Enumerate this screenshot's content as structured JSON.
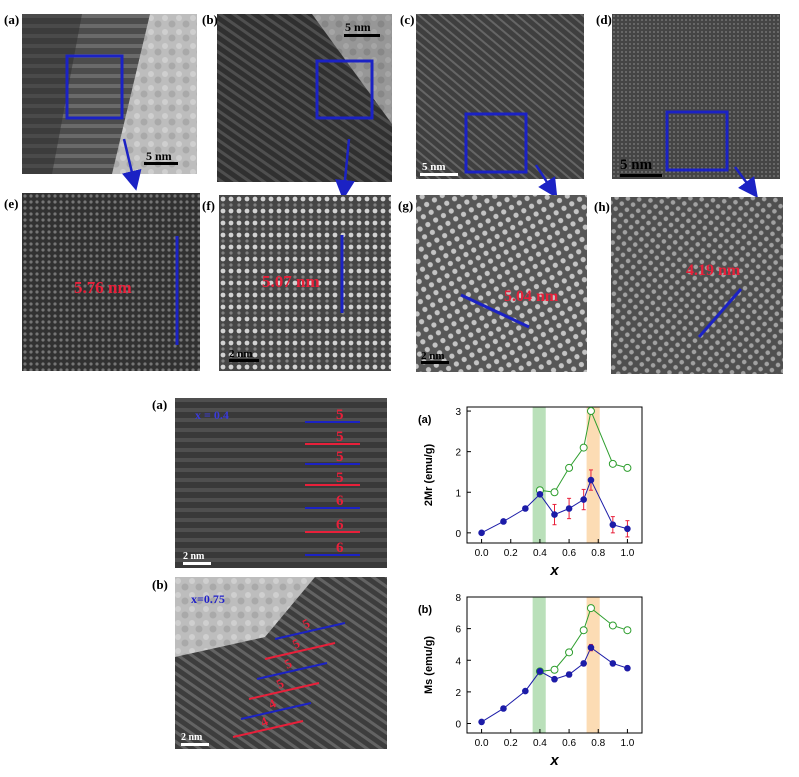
{
  "top_panels": [
    {
      "label": "(a)",
      "scale": "5 nm"
    },
    {
      "label": "(b)",
      "scale": "5 nm"
    },
    {
      "label": "(c)",
      "scale": "5 nm"
    },
    {
      "label": "(d)",
      "scale": "5 nm"
    }
  ],
  "zoom_panels": [
    {
      "label": "(e)",
      "measure": "5.76 nm",
      "scale": ""
    },
    {
      "label": "(f)",
      "measure": "5.07 nm",
      "scale": "2 nm"
    },
    {
      "label": "(g)",
      "measure": "5.04 nm",
      "scale": "2 nm"
    },
    {
      "label": "(h)",
      "measure": "4.19 nm",
      "scale": ""
    }
  ],
  "bottom_images": [
    {
      "label": "(a)",
      "composition": "x = 0.4",
      "scale": "2 nm",
      "layers": [
        "5",
        "5",
        "5",
        "5",
        "6",
        "6",
        "6"
      ]
    },
    {
      "label": "(b)",
      "composition": "x=0.75",
      "scale": "2 nm",
      "layers": [
        "5",
        "5",
        "5",
        "5",
        "4",
        "4"
      ]
    }
  ],
  "chart_data": [
    {
      "type": "line",
      "panel_label": "(a)",
      "xlabel": "x",
      "ylabel": "2Mr (emu/g)",
      "xlim": [
        -0.1,
        1.1
      ],
      "ylim": [
        -0.25,
        3.1
      ],
      "xticks": [
        "0.0",
        "0.2",
        "0.4",
        "0.6",
        "0.8",
        "1.0"
      ],
      "yticks": [
        "0",
        "1",
        "2",
        "3"
      ],
      "highlight_bands": [
        {
          "from": 0.35,
          "to": 0.44,
          "color": "#a9d8a9"
        },
        {
          "from": 0.72,
          "to": 0.81,
          "color": "#fbd3a1"
        }
      ],
      "series": [
        {
          "color": "#2e9e2e",
          "marker": "open-circle",
          "x": [
            0.4,
            0.5,
            0.6,
            0.7,
            0.75,
            0.9,
            1.0
          ],
          "y": [
            1.05,
            1.0,
            1.6,
            2.1,
            3.0,
            1.7,
            1.6
          ]
        },
        {
          "color": "#1c1ca8",
          "marker": "filled-circle",
          "x": [
            0.0,
            0.15,
            0.3,
            0.4,
            0.5,
            0.6,
            0.7,
            0.75,
            0.9,
            1.0
          ],
          "y": [
            0.0,
            0.28,
            0.6,
            0.95,
            0.45,
            0.6,
            0.82,
            1.3,
            0.2,
            0.1
          ],
          "error": [
            0.02,
            0.03,
            0.03,
            0.05,
            0.25,
            0.25,
            0.25,
            0.25,
            0.2,
            0.2
          ]
        }
      ]
    },
    {
      "type": "line",
      "panel_label": "(b)",
      "xlabel": "x",
      "ylabel": "Ms (emu/g)",
      "xlim": [
        -0.1,
        1.1
      ],
      "ylim": [
        -0.6,
        8
      ],
      "xticks": [
        "0.0",
        "0.2",
        "0.4",
        "0.6",
        "0.8",
        "1.0"
      ],
      "yticks": [
        "0",
        "2",
        "4",
        "6",
        "8"
      ],
      "highlight_bands": [
        {
          "from": 0.35,
          "to": 0.44,
          "color": "#a9d8a9"
        },
        {
          "from": 0.72,
          "to": 0.81,
          "color": "#fbd3a1"
        }
      ],
      "series": [
        {
          "color": "#2e9e2e",
          "marker": "open-circle",
          "x": [
            0.4,
            0.5,
            0.6,
            0.7,
            0.75,
            0.9,
            1.0
          ],
          "y": [
            3.3,
            3.4,
            4.5,
            5.9,
            7.3,
            6.2,
            5.9
          ]
        },
        {
          "color": "#1c1ca8",
          "marker": "filled-circle",
          "x": [
            0.0,
            0.15,
            0.3,
            0.4,
            0.5,
            0.6,
            0.7,
            0.75,
            0.9,
            1.0
          ],
          "y": [
            0.1,
            0.95,
            2.05,
            3.3,
            2.8,
            3.1,
            3.8,
            4.8,
            3.8,
            3.5
          ],
          "error": [
            0.05,
            0.05,
            0.05,
            0.1,
            0.15,
            0.15,
            0.15,
            0.2,
            0.15,
            0.15
          ]
        }
      ]
    }
  ]
}
